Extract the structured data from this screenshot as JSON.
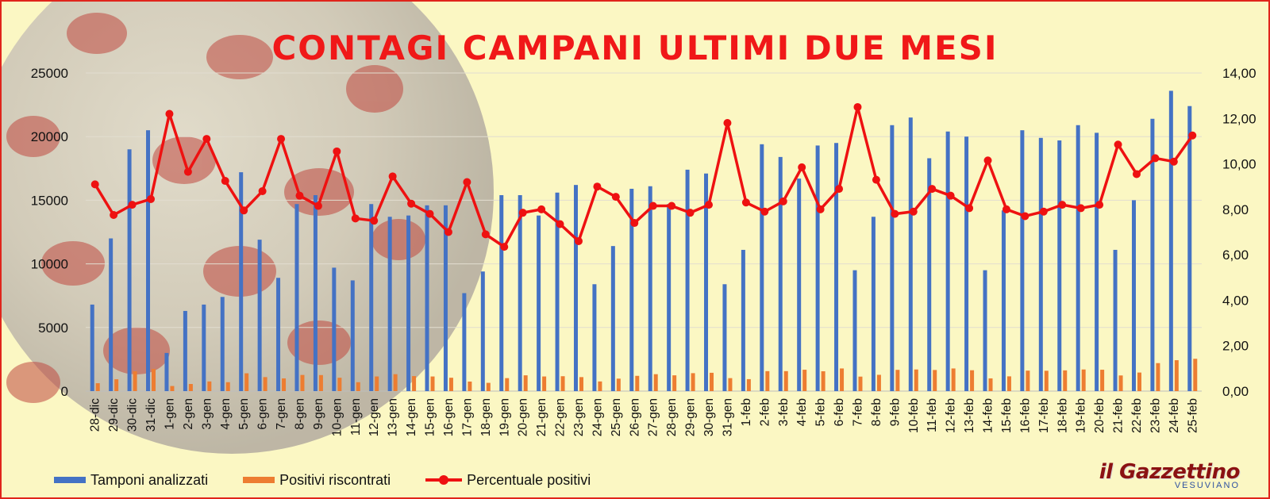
{
  "title": "CONTAGI CAMPANI ULTIMI DUE MESI",
  "logo": {
    "main": "il Gazzettino",
    "sub": "VESUVIANO"
  },
  "colors": {
    "tamponi": "#4472c4",
    "positivi": "#ed7d31",
    "percentuale": "#ee1111",
    "title": "#f01818",
    "background": "#fbf7c3"
  },
  "chart_data": {
    "type": "bar",
    "title": "CONTAGI CAMPANI ULTIMI DUE MESI",
    "categories": [
      "28-dic",
      "29-dic",
      "30-dic",
      "31-dic",
      "1-gen",
      "2-gen",
      "3-gen",
      "4-gen",
      "5-gen",
      "6-gen",
      "7-gen",
      "8-gen",
      "9-gen",
      "10-gen",
      "11-gen",
      "12-gen",
      "13-gen",
      "14-gen",
      "15-gen",
      "16-gen",
      "17-gen",
      "18-gen",
      "19-gen",
      "20-gen",
      "21-gen",
      "22-gen",
      "23-gen",
      "24-gen",
      "25-gen",
      "26-gen",
      "27-gen",
      "28-gen",
      "29-gen",
      "30-gen",
      "31-gen",
      "1-feb",
      "2-feb",
      "3-feb",
      "4-feb",
      "5-feb",
      "6-feb",
      "7-feb",
      "8-feb",
      "9-feb",
      "10-feb",
      "11-feb",
      "12-feb",
      "13-feb",
      "14-feb",
      "15-feb",
      "16-feb",
      "17-feb",
      "18-feb",
      "19-feb",
      "20-feb",
      "21-feb",
      "22-feb",
      "23-feb",
      "24-feb",
      "25-feb"
    ],
    "y_left": {
      "ticks": [
        "0",
        "5000",
        "10000",
        "15000",
        "20000",
        "25000"
      ],
      "ylim": [
        0,
        25000
      ]
    },
    "y_right": {
      "ticks": [
        "0,00",
        "2,00",
        "4,00",
        "6,00",
        "8,00",
        "10,00",
        "12,00",
        "14,00"
      ],
      "ylim": [
        0,
        14
      ]
    },
    "series": [
      {
        "name": "Tamponi analizzati",
        "type": "bar",
        "axis": "left",
        "values": [
          6800,
          12000,
          19000,
          20500,
          3000,
          6300,
          6800,
          7400,
          17200,
          11900,
          8900,
          14700,
          15400,
          9700,
          8700,
          14700,
          13700,
          13800,
          14600,
          14600,
          7700,
          9400,
          15400,
          15400,
          13800,
          15600,
          16200,
          8400,
          11400,
          15900,
          16100,
          14700,
          17400,
          17100,
          8400,
          11100,
          19400,
          18400,
          16700,
          19300,
          19500,
          9500,
          13700,
          20900,
          21500,
          18300,
          20400,
          20000,
          9500,
          14200,
          20500,
          19900,
          19700,
          20900,
          20300,
          11100,
          15000,
          21400,
          23600,
          22400
        ]
      },
      {
        "name": "Positivi riscontrati",
        "type": "bar",
        "axis": "left",
        "values": [
          620,
          930,
          1560,
          1740,
          400,
          560,
          760,
          700,
          1400,
          1100,
          1000,
          1270,
          1260,
          1050,
          700,
          1150,
          1330,
          1180,
          1150,
          1050,
          750,
          650,
          1020,
          1240,
          1150,
          1170,
          1100,
          760,
          980,
          1200,
          1330,
          1240,
          1410,
          1440,
          1020,
          940,
          1570,
          1570,
          1680,
          1560,
          1780,
          1140,
          1280,
          1670,
          1700,
          1660,
          1780,
          1640,
          1000,
          1160,
          1610,
          1600,
          1630,
          1700,
          1680,
          1230,
          1460,
          2200,
          2430,
          2540
        ]
      },
      {
        "name": "Percentuale positivi",
        "type": "line",
        "axis": "right",
        "values": [
          9.1,
          7.75,
          8.2,
          8.45,
          12.2,
          9.65,
          11.1,
          9.25,
          7.95,
          8.8,
          11.1,
          8.6,
          8.15,
          10.55,
          7.6,
          7.5,
          9.45,
          8.25,
          7.8,
          7.0,
          9.2,
          6.9,
          6.35,
          7.85,
          8.0,
          7.35,
          6.6,
          9.0,
          8.55,
          7.4,
          8.15,
          8.15,
          7.85,
          8.2,
          11.8,
          8.3,
          7.9,
          8.35,
          9.85,
          8.0,
          8.9,
          12.5,
          9.3,
          7.8,
          7.9,
          8.9,
          8.6,
          8.05,
          10.15,
          8.0,
          7.7,
          7.9,
          8.2,
          8.05,
          8.2,
          10.85,
          9.55,
          10.25,
          10.1,
          11.25
        ]
      }
    ],
    "legend_position": "bottom-left",
    "grid": true
  }
}
